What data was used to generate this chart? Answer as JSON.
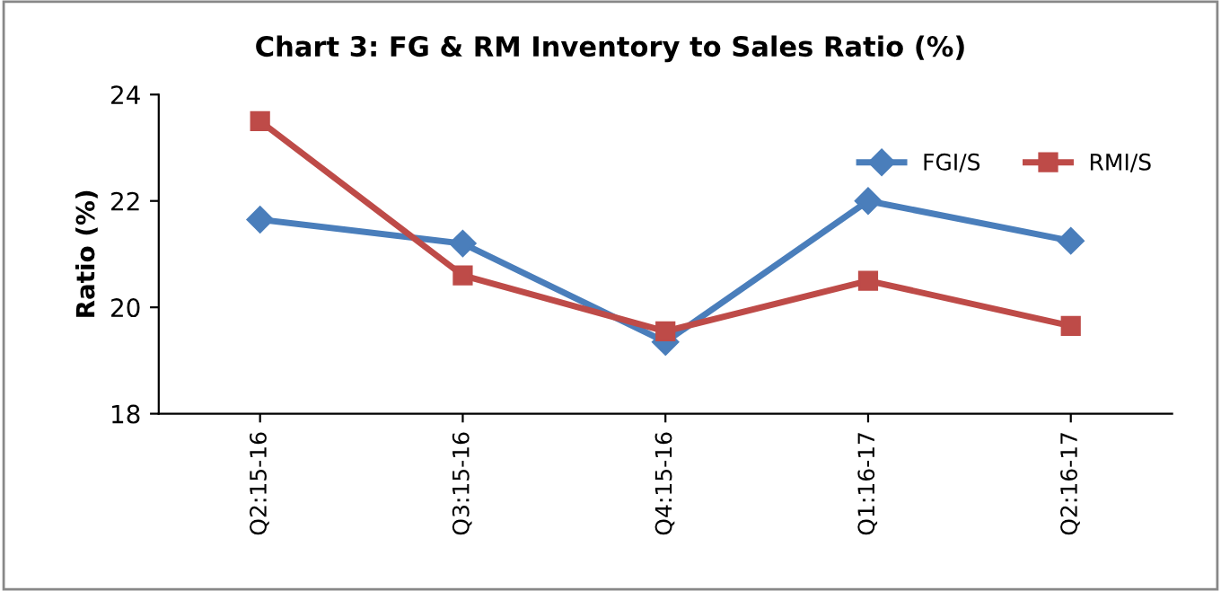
{
  "chart_data": {
    "type": "line",
    "title": "Chart 3: FG & RM Inventory to Sales Ratio (%)",
    "ylabel": "Ratio (%)",
    "categories": [
      "Q2:15-16",
      "Q3:15-16",
      "Q4:15-16",
      "Q1:16-17",
      "Q2:16-17"
    ],
    "series": [
      {
        "name": "FGI/S",
        "color": "#4a7ebb",
        "marker": "diamond",
        "values": [
          21.65,
          21.2,
          19.35,
          22.0,
          21.25
        ]
      },
      {
        "name": "RMI/S",
        "color": "#be4b48",
        "marker": "square",
        "values": [
          23.5,
          20.6,
          19.55,
          20.5,
          19.65
        ]
      }
    ],
    "ylim": [
      18,
      24
    ],
    "yticks": [
      18,
      20,
      22,
      24
    ],
    "grid": false,
    "legend": "top right",
    "line_style": "solid"
  }
}
